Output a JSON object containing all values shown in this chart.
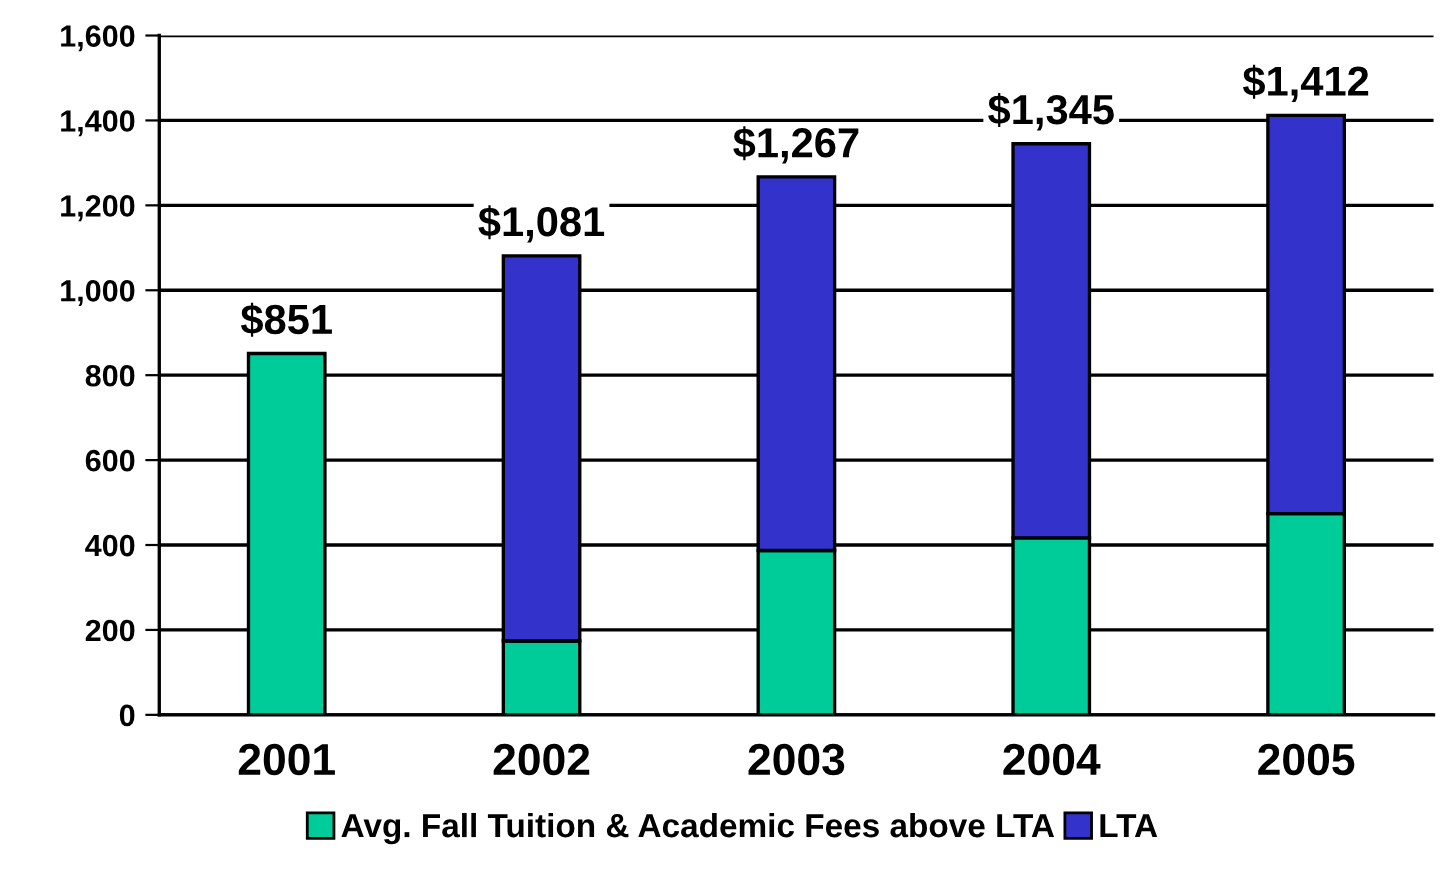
{
  "chart_data": {
    "type": "bar",
    "stacked": true,
    "categories": [
      "2001",
      "2002",
      "2003",
      "2004",
      "2005"
    ],
    "series": [
      {
        "name": "Avg. Fall Tuition & Academic Fees above LTA",
        "color": "#00cc99",
        "values": [
          851,
          174,
          387,
          417,
          474
        ]
      },
      {
        "name": "LTA",
        "color": "#3333cc",
        "values": [
          null,
          907,
          880,
          928,
          938
        ]
      }
    ],
    "totals": [
      "$851",
      "$1,081",
      "$1,267",
      "$1,345",
      "$1,412"
    ],
    "ylim": [
      0,
      1600
    ],
    "yticks": [
      0,
      200,
      400,
      600,
      800,
      {
        "value": 1000,
        "label": "1,000"
      },
      {
        "value": 1200,
        "label": "1,200"
      },
      {
        "value": 1400,
        "label": "1,400"
      },
      {
        "value": 1600,
        "label": "1,600"
      }
    ],
    "grid": "y",
    "legend": "bottom"
  }
}
